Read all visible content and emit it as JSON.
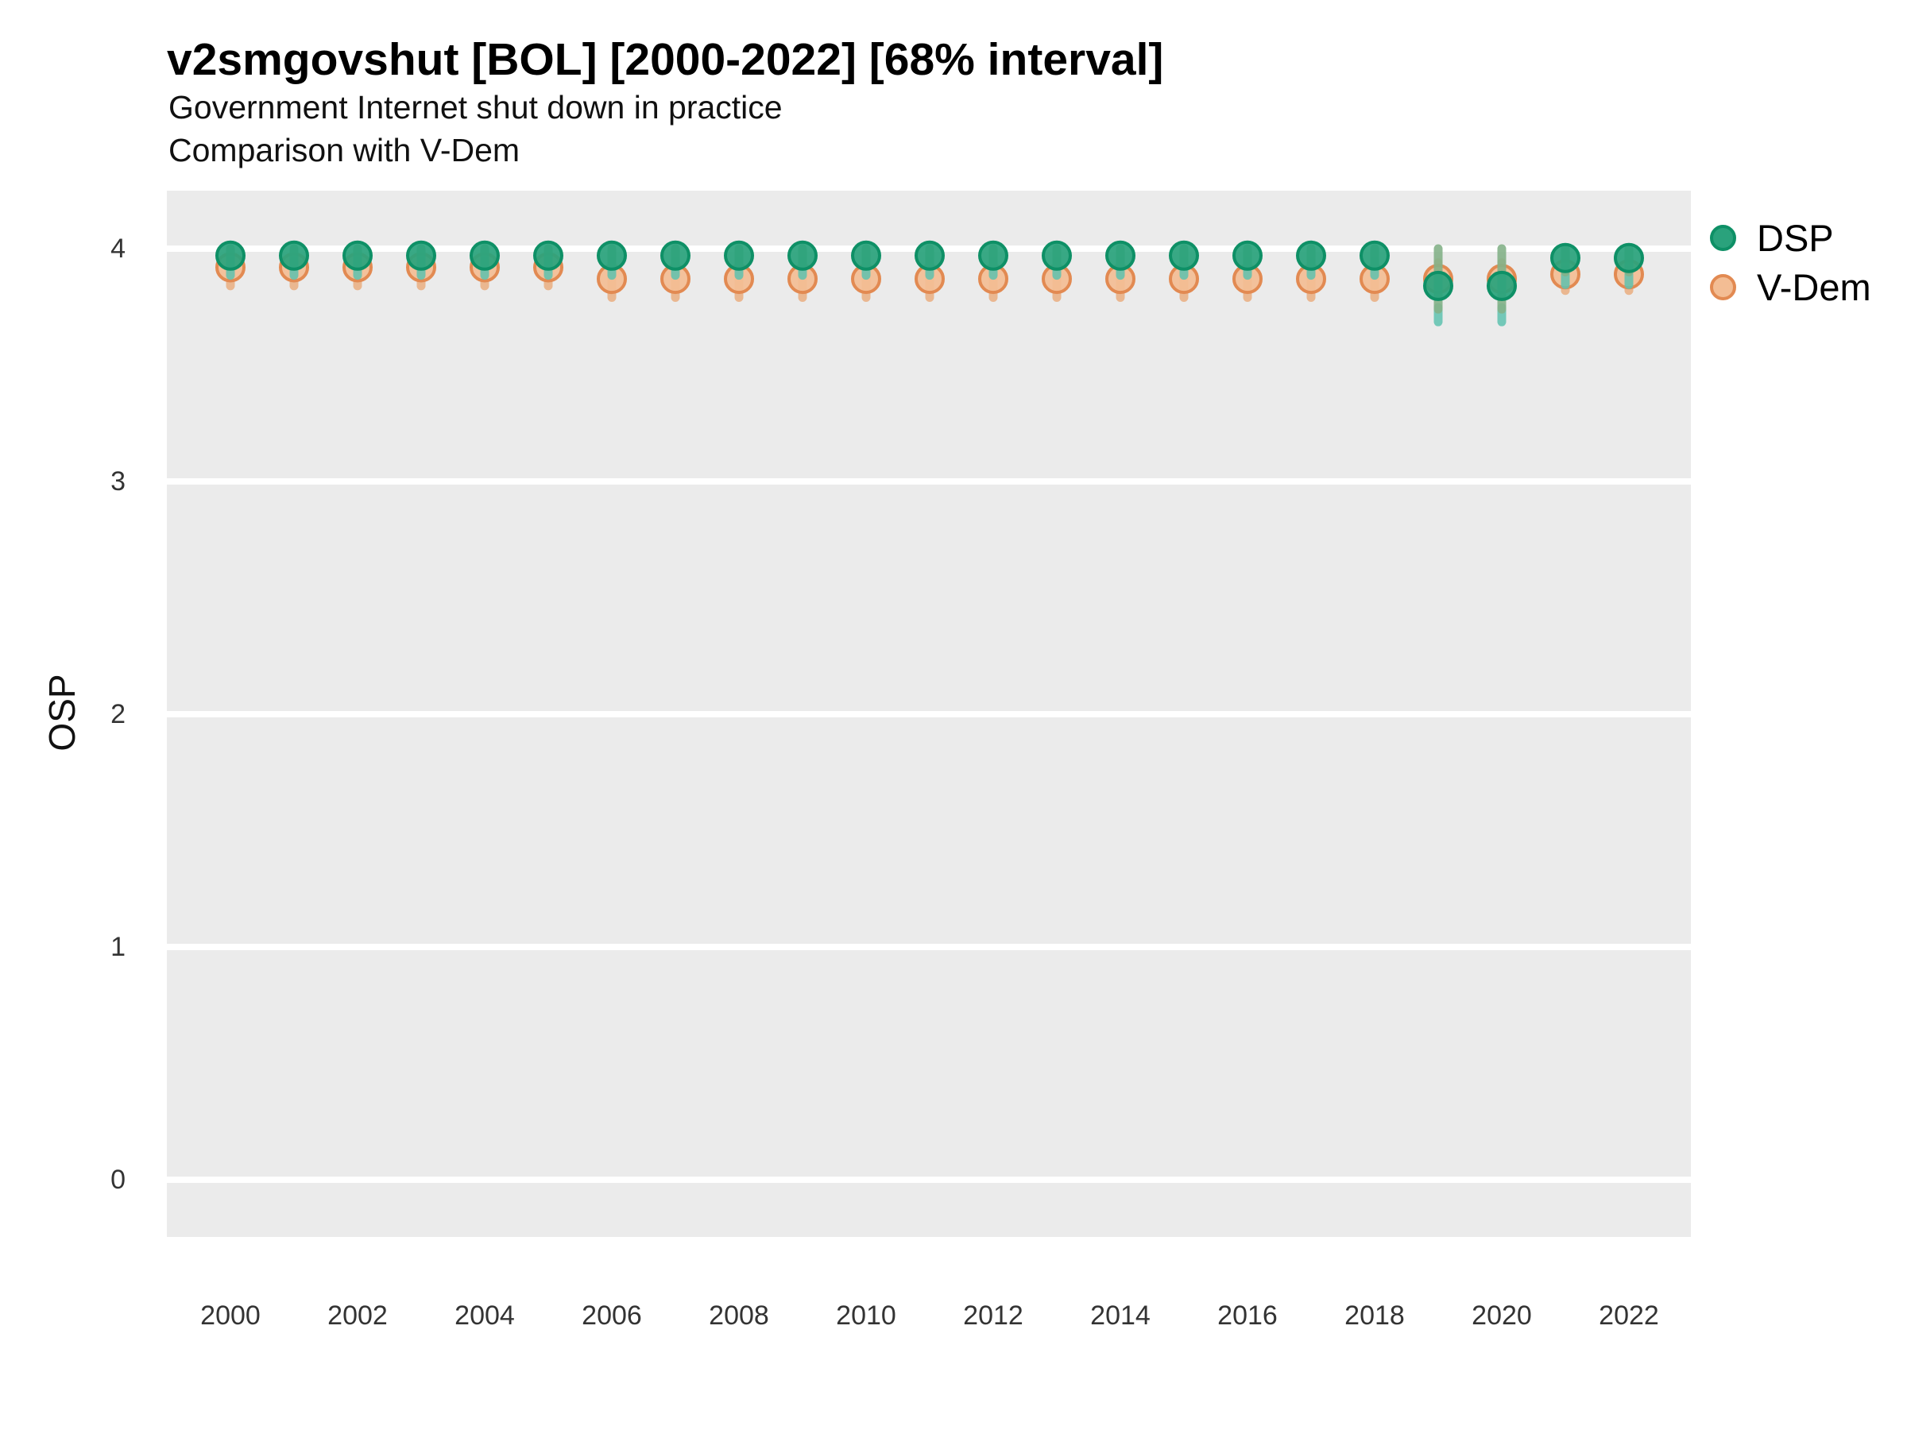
{
  "header": {
    "title": "v2smgovshut [BOL] [2000-2022] [68% interval]",
    "subtitle1": "Government Internet shut down in practice",
    "subtitle2": "Comparison with V-Dem"
  },
  "legend": {
    "position": "right-top",
    "items": [
      {
        "label": "DSP",
        "marker": "circle"
      },
      {
        "label": "V-Dem",
        "marker": "circle"
      }
    ]
  },
  "colors": {
    "panel_background": "#EBEBEB",
    "gridline": "#FFFFFF",
    "dsp_fill": "#2AA27C",
    "dsp_stroke": "#0E9066",
    "dsp_bar": "#84B289",
    "dsp_bar_tip": "#5FC2B0",
    "vdem_fill": "#F3BD94",
    "vdem_stroke": "#E28A52",
    "vdem_bar": "#EAB287",
    "tick_text": "#333333",
    "title_text": "#000000"
  },
  "chart_data": {
    "type": "scatter",
    "title": "v2smgovshut [BOL] [2000-2022] [68% interval]",
    "subtitle": "Government Internet shut down in practice — Comparison with V-Dem",
    "xlabel": "",
    "ylabel": "OSP",
    "ylim": [
      -0.29,
      4.25
    ],
    "y_ticks": [
      0,
      1,
      2,
      3,
      4
    ],
    "x_ticks": [
      2000,
      2002,
      2004,
      2006,
      2008,
      2010,
      2012,
      2014,
      2016,
      2018,
      2020,
      2022
    ],
    "grid": "horizontal white major gridlines on gray panel",
    "legend_position": "top-right",
    "interval": "68%",
    "x": [
      2000,
      2001,
      2002,
      2003,
      2004,
      2005,
      2006,
      2007,
      2008,
      2009,
      2010,
      2011,
      2012,
      2013,
      2014,
      2015,
      2016,
      2017,
      2018,
      2019,
      2020,
      2021,
      2022
    ],
    "series": [
      {
        "name": "DSP",
        "values": [
          3.97,
          3.97,
          3.97,
          3.97,
          3.97,
          3.97,
          3.97,
          3.97,
          3.97,
          3.97,
          3.97,
          3.97,
          3.97,
          3.97,
          3.97,
          3.97,
          3.97,
          3.97,
          3.97,
          3.84,
          3.84,
          3.96,
          3.96
        ],
        "lo": [
          3.94,
          3.94,
          3.94,
          3.94,
          3.94,
          3.94,
          3.94,
          3.94,
          3.94,
          3.94,
          3.94,
          3.94,
          3.94,
          3.94,
          3.94,
          3.94,
          3.94,
          3.94,
          3.94,
          3.74,
          3.74,
          3.9,
          3.9
        ],
        "hi": [
          4.0,
          4.0,
          4.0,
          4.0,
          4.0,
          4.0,
          4.0,
          4.0,
          4.0,
          4.0,
          4.0,
          4.0,
          4.0,
          4.0,
          4.0,
          4.0,
          4.0,
          4.0,
          4.0,
          4.0,
          4.0,
          4.0,
          4.0
        ]
      },
      {
        "name": "V-Dem",
        "values": [
          3.92,
          3.92,
          3.92,
          3.92,
          3.92,
          3.92,
          3.87,
          3.87,
          3.87,
          3.87,
          3.87,
          3.87,
          3.87,
          3.87,
          3.87,
          3.87,
          3.87,
          3.87,
          3.87,
          3.87,
          3.87,
          3.89,
          3.89
        ],
        "lo": [
          3.84,
          3.84,
          3.84,
          3.84,
          3.84,
          3.84,
          3.79,
          3.79,
          3.79,
          3.79,
          3.79,
          3.79,
          3.79,
          3.79,
          3.79,
          3.79,
          3.79,
          3.79,
          3.79,
          3.8,
          3.8,
          3.82,
          3.82
        ],
        "hi": [
          3.97,
          3.97,
          3.97,
          3.97,
          3.97,
          3.97,
          3.95,
          3.95,
          3.95,
          3.95,
          3.95,
          3.95,
          3.95,
          3.95,
          3.95,
          3.95,
          3.95,
          3.95,
          3.95,
          3.94,
          3.94,
          3.95,
          3.95
        ]
      }
    ]
  }
}
